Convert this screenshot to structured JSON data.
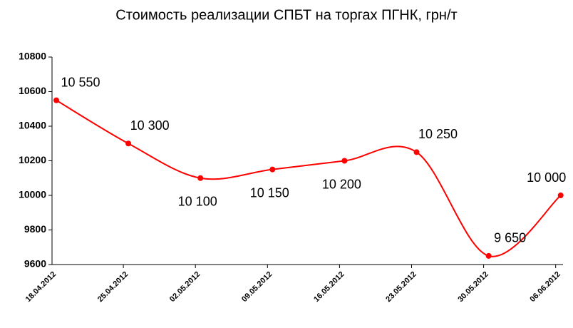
{
  "chart_data": {
    "type": "line",
    "title": "Стоимость реализации СПБТ на торгах ПГНК, грн/т",
    "categories": [
      "18.04.2012",
      "25.04.2012",
      "02.05.2012",
      "09.05.2012",
      "16.05.2012",
      "23.05.2012",
      "30.05.2012",
      "06.06.2012"
    ],
    "values": [
      10550,
      10300,
      10100,
      10150,
      10200,
      10250,
      9650,
      10000
    ],
    "value_labels": [
      "10 550",
      "10 300",
      "10 100",
      "10 150",
      "10 200",
      "10 250",
      "9 650",
      "10 000"
    ],
    "color": "#ff0000",
    "smooth": true,
    "grid": false,
    "ylim": [
      9600,
      10800
    ],
    "yticks": [
      9600,
      9800,
      10000,
      10200,
      10400,
      10600,
      10800
    ]
  }
}
